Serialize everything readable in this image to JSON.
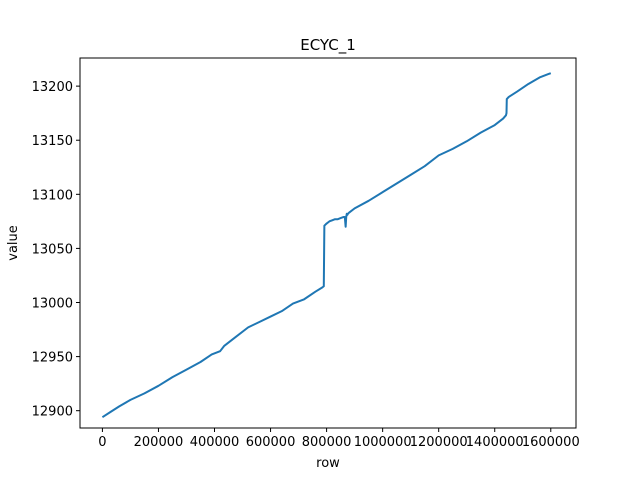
{
  "chart_data": {
    "type": "line",
    "title": "ECYC_1",
    "xlabel": "row",
    "ylabel": "value",
    "xlim": [
      -80000,
      1690000
    ],
    "ylim": [
      12884,
      13226
    ],
    "grid": false,
    "line_color": "#1f77b4",
    "x_ticks": [
      0,
      200000,
      400000,
      600000,
      800000,
      1000000,
      1200000,
      1400000,
      1600000
    ],
    "x_tick_labels": [
      "0",
      "200000",
      "400000",
      "600000",
      "800000",
      "1000000",
      "1200000",
      "1400000",
      "1600000"
    ],
    "y_ticks": [
      12900,
      12950,
      13000,
      13050,
      13100,
      13150,
      13200
    ],
    "y_tick_labels": [
      "12900",
      "12950",
      "13000",
      "13050",
      "13100",
      "13150",
      "13200"
    ],
    "series": [
      {
        "x": [
          0,
          30000,
          60000,
          100000,
          150000,
          200000,
          250000,
          300000,
          350000,
          390000,
          420000,
          435000,
          470000,
          520000,
          560000,
          600000,
          640000,
          680000,
          720000,
          760000,
          785000,
          790000,
          792000,
          800000,
          810000,
          820000,
          830000,
          840000,
          850000,
          860000,
          865000,
          868000,
          870000,
          872000,
          874000,
          876000,
          880000,
          900000,
          950000,
          1000000,
          1050000,
          1100000,
          1150000,
          1200000,
          1250000,
          1300000,
          1350000,
          1400000,
          1430000,
          1440000,
          1442000,
          1443000,
          1450000,
          1480000,
          1520000,
          1560000,
          1590000,
          1600000
        ],
        "y": [
          12894,
          12899,
          12904,
          12910,
          12916,
          12923,
          12931,
          12938,
          12945,
          12952,
          12955,
          12960,
          12967,
          12977,
          12982,
          12987,
          12992,
          12999,
          13003,
          13010,
          13014,
          13015,
          13071,
          13073,
          13075,
          13076,
          13077,
          13077,
          13078,
          13079,
          13079,
          13070,
          13079,
          13082,
          13081,
          13082,
          13083,
          13087,
          13094,
          13102,
          13110,
          13118,
          13126,
          13136,
          13142,
          13149,
          13157,
          13164,
          13170,
          13173,
          13175,
          13188,
          13190,
          13195,
          13202,
          13208,
          13211,
          13212
        ]
      }
    ]
  }
}
